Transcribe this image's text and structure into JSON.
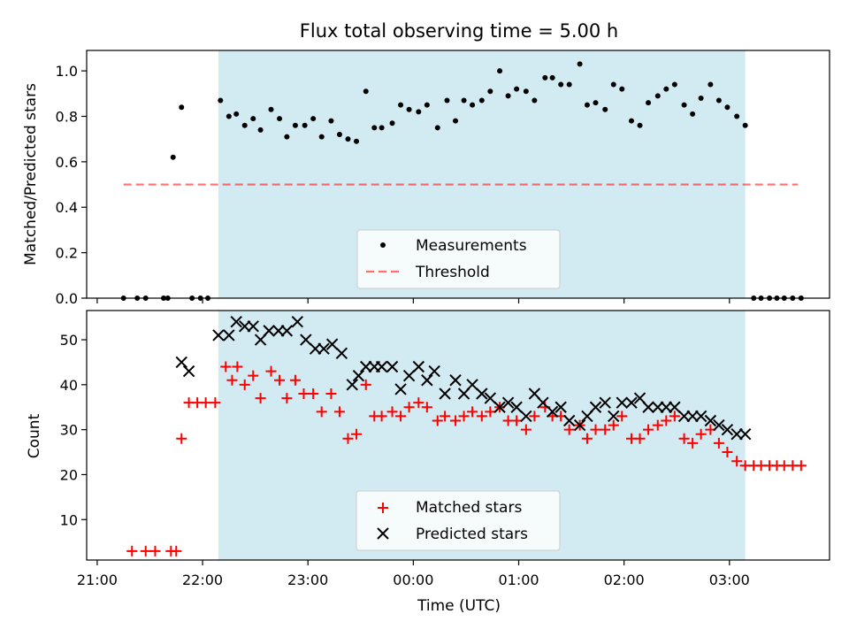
{
  "chart_data": {
    "title": "Flux total observing time = 5.00 h",
    "x_axis": {
      "label": "Time (UTC)",
      "unit": "hours after 21:00 UTC",
      "range": [
        -0.1,
        6.95
      ],
      "tick_positions": [
        0,
        1,
        2,
        3,
        4,
        5,
        6
      ],
      "tick_labels": [
        "21:00",
        "22:00",
        "23:00",
        "00:00",
        "01:00",
        "02:00",
        "03:00"
      ]
    },
    "shaded_interval": [
      1.15,
      6.15
    ],
    "colors": {
      "shade": "#add8e6",
      "measurements": "#000000",
      "threshold": "#ff0000",
      "matched": "#ff0000",
      "predicted": "#000000"
    },
    "top": {
      "type": "scatter",
      "ylabel": "Matched/Predicted stars",
      "ylim": [
        0.0,
        1.09
      ],
      "yticks": [
        0.0,
        0.2,
        0.4,
        0.6,
        0.8,
        1.0
      ],
      "ytick_labels": [
        "0.0",
        "0.2",
        "0.4",
        "0.6",
        "0.8",
        "1.0"
      ],
      "legend": {
        "placement": "bottom-center",
        "entries": [
          {
            "label": "Measurements",
            "marker": "dot"
          },
          {
            "label": "Threshold",
            "marker": "dashed-line"
          }
        ]
      },
      "threshold": {
        "value": 0.5,
        "x_range": [
          0.25,
          6.65
        ]
      },
      "measurements": [
        [
          0.25,
          0
        ],
        [
          0.38,
          0
        ],
        [
          0.46,
          0
        ],
        [
          0.63,
          0
        ],
        [
          0.67,
          0
        ],
        [
          0.72,
          0.62
        ],
        [
          0.8,
          0.84
        ],
        [
          0.9,
          0
        ],
        [
          0.98,
          0
        ],
        [
          1.05,
          0
        ],
        [
          1.17,
          0.87
        ],
        [
          1.25,
          0.8
        ],
        [
          1.32,
          0.81
        ],
        [
          1.4,
          0.76
        ],
        [
          1.48,
          0.79
        ],
        [
          1.55,
          0.74
        ],
        [
          1.65,
          0.83
        ],
        [
          1.73,
          0.79
        ],
        [
          1.8,
          0.71
        ],
        [
          1.88,
          0.76
        ],
        [
          1.97,
          0.76
        ],
        [
          2.05,
          0.79
        ],
        [
          2.13,
          0.71
        ],
        [
          2.22,
          0.78
        ],
        [
          2.3,
          0.72
        ],
        [
          2.38,
          0.7
        ],
        [
          2.46,
          0.69
        ],
        [
          2.55,
          0.91
        ],
        [
          2.63,
          0.75
        ],
        [
          2.7,
          0.75
        ],
        [
          2.8,
          0.77
        ],
        [
          2.88,
          0.85
        ],
        [
          2.96,
          0.83
        ],
        [
          3.05,
          0.82
        ],
        [
          3.13,
          0.85
        ],
        [
          3.23,
          0.75
        ],
        [
          3.32,
          0.87
        ],
        [
          3.4,
          0.78
        ],
        [
          3.48,
          0.87
        ],
        [
          3.56,
          0.85
        ],
        [
          3.65,
          0.87
        ],
        [
          3.73,
          0.91
        ],
        [
          3.82,
          1.0
        ],
        [
          3.9,
          0.89
        ],
        [
          3.98,
          0.92
        ],
        [
          4.07,
          0.91
        ],
        [
          4.15,
          0.87
        ],
        [
          4.25,
          0.97
        ],
        [
          4.32,
          0.97
        ],
        [
          4.4,
          0.94
        ],
        [
          4.48,
          0.94
        ],
        [
          4.58,
          1.03
        ],
        [
          4.65,
          0.85
        ],
        [
          4.73,
          0.86
        ],
        [
          4.82,
          0.83
        ],
        [
          4.9,
          0.94
        ],
        [
          4.98,
          0.92
        ],
        [
          5.07,
          0.78
        ],
        [
          5.15,
          0.76
        ],
        [
          5.23,
          0.86
        ],
        [
          5.32,
          0.89
        ],
        [
          5.4,
          0.92
        ],
        [
          5.48,
          0.94
        ],
        [
          5.57,
          0.85
        ],
        [
          5.65,
          0.81
        ],
        [
          5.73,
          0.88
        ],
        [
          5.82,
          0.94
        ],
        [
          5.9,
          0.87
        ],
        [
          5.98,
          0.84
        ],
        [
          6.07,
          0.8
        ],
        [
          6.15,
          0.76
        ],
        [
          6.23,
          0
        ],
        [
          6.3,
          0
        ],
        [
          6.38,
          0
        ],
        [
          6.45,
          0
        ],
        [
          6.52,
          0
        ],
        [
          6.6,
          0
        ],
        [
          6.68,
          0
        ]
      ]
    },
    "bottom": {
      "type": "scatter",
      "ylabel": "Count",
      "ylim": [
        1,
        56.5
      ],
      "yticks": [
        10,
        20,
        30,
        40,
        50
      ],
      "ytick_labels": [
        "10",
        "20",
        "30",
        "40",
        "50"
      ],
      "legend": {
        "placement": "bottom-center",
        "entries": [
          {
            "label": "Matched stars",
            "marker": "plus"
          },
          {
            "label": "Predicted stars",
            "marker": "x"
          }
        ]
      },
      "matched": [
        [
          0.33,
          3
        ],
        [
          0.46,
          3
        ],
        [
          0.55,
          3
        ],
        [
          0.7,
          3
        ],
        [
          0.75,
          3
        ],
        [
          0.8,
          28
        ],
        [
          0.87,
          36
        ],
        [
          0.95,
          36
        ],
        [
          1.03,
          36
        ],
        [
          1.12,
          36
        ],
        [
          1.22,
          44
        ],
        [
          1.28,
          41
        ],
        [
          1.33,
          44
        ],
        [
          1.4,
          40
        ],
        [
          1.48,
          42
        ],
        [
          1.55,
          37
        ],
        [
          1.65,
          43
        ],
        [
          1.73,
          41
        ],
        [
          1.8,
          37
        ],
        [
          1.88,
          41
        ],
        [
          1.96,
          38
        ],
        [
          2.05,
          38
        ],
        [
          2.13,
          34
        ],
        [
          2.22,
          38
        ],
        [
          2.3,
          34
        ],
        [
          2.38,
          28
        ],
        [
          2.46,
          29
        ],
        [
          2.55,
          40
        ],
        [
          2.63,
          33
        ],
        [
          2.7,
          33
        ],
        [
          2.8,
          34
        ],
        [
          2.88,
          33
        ],
        [
          2.96,
          35
        ],
        [
          3.05,
          36
        ],
        [
          3.13,
          35
        ],
        [
          3.23,
          32
        ],
        [
          3.3,
          33
        ],
        [
          3.4,
          32
        ],
        [
          3.48,
          33
        ],
        [
          3.56,
          34
        ],
        [
          3.65,
          33
        ],
        [
          3.73,
          34
        ],
        [
          3.82,
          35
        ],
        [
          3.9,
          32
        ],
        [
          3.98,
          32
        ],
        [
          4.07,
          30
        ],
        [
          4.15,
          33
        ],
        [
          4.25,
          35
        ],
        [
          4.32,
          33
        ],
        [
          4.4,
          33
        ],
        [
          4.48,
          30
        ],
        [
          4.58,
          31
        ],
        [
          4.65,
          28
        ],
        [
          4.73,
          30
        ],
        [
          4.82,
          30
        ],
        [
          4.9,
          31
        ],
        [
          4.98,
          33
        ],
        [
          5.07,
          28
        ],
        [
          5.15,
          28
        ],
        [
          5.23,
          30
        ],
        [
          5.32,
          31
        ],
        [
          5.4,
          32
        ],
        [
          5.48,
          33
        ],
        [
          5.57,
          28
        ],
        [
          5.65,
          27
        ],
        [
          5.73,
          29
        ],
        [
          5.82,
          30
        ],
        [
          5.9,
          27
        ],
        [
          5.98,
          25
        ],
        [
          6.07,
          23
        ],
        [
          6.15,
          22
        ],
        [
          6.23,
          22
        ],
        [
          6.3,
          22
        ],
        [
          6.38,
          22
        ],
        [
          6.45,
          22
        ],
        [
          6.52,
          22
        ],
        [
          6.6,
          22
        ],
        [
          6.68,
          22
        ]
      ],
      "predicted": [
        [
          0.8,
          45
        ],
        [
          0.87,
          43
        ],
        [
          1.15,
          51
        ],
        [
          1.25,
          51
        ],
        [
          1.32,
          54
        ],
        [
          1.4,
          53
        ],
        [
          1.48,
          53
        ],
        [
          1.55,
          50
        ],
        [
          1.63,
          52
        ],
        [
          1.72,
          52
        ],
        [
          1.8,
          52
        ],
        [
          1.9,
          54
        ],
        [
          1.98,
          50
        ],
        [
          2.07,
          48
        ],
        [
          2.15,
          48
        ],
        [
          2.23,
          49
        ],
        [
          2.32,
          47
        ],
        [
          2.42,
          40
        ],
        [
          2.48,
          42
        ],
        [
          2.55,
          44
        ],
        [
          2.63,
          44
        ],
        [
          2.7,
          44
        ],
        [
          2.8,
          44
        ],
        [
          2.88,
          39
        ],
        [
          2.96,
          42
        ],
        [
          3.05,
          44
        ],
        [
          3.13,
          41
        ],
        [
          3.2,
          43
        ],
        [
          3.3,
          38
        ],
        [
          3.4,
          41
        ],
        [
          3.48,
          38
        ],
        [
          3.56,
          40
        ],
        [
          3.65,
          38
        ],
        [
          3.73,
          37
        ],
        [
          3.82,
          35
        ],
        [
          3.9,
          36
        ],
        [
          3.98,
          35
        ],
        [
          4.07,
          33
        ],
        [
          4.15,
          38
        ],
        [
          4.23,
          36
        ],
        [
          4.32,
          34
        ],
        [
          4.4,
          35
        ],
        [
          4.48,
          32
        ],
        [
          4.58,
          31
        ],
        [
          4.65,
          33
        ],
        [
          4.73,
          35
        ],
        [
          4.82,
          36
        ],
        [
          4.9,
          33
        ],
        [
          4.98,
          36
        ],
        [
          5.07,
          36
        ],
        [
          5.15,
          37
        ],
        [
          5.23,
          35
        ],
        [
          5.32,
          35
        ],
        [
          5.4,
          35
        ],
        [
          5.48,
          35
        ],
        [
          5.57,
          33
        ],
        [
          5.65,
          33
        ],
        [
          5.73,
          33
        ],
        [
          5.82,
          32
        ],
        [
          5.9,
          31
        ],
        [
          5.98,
          30
        ],
        [
          6.07,
          29
        ],
        [
          6.15,
          29
        ]
      ]
    }
  }
}
